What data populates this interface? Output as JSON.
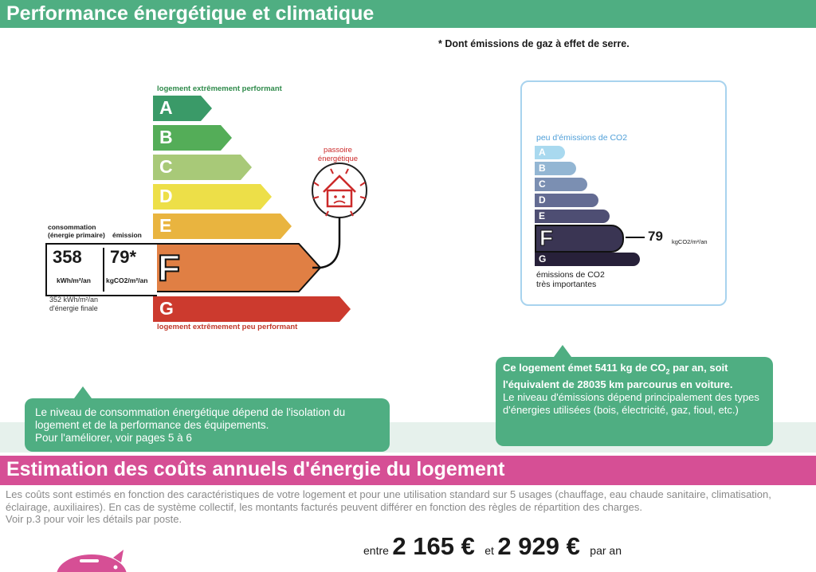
{
  "section1": {
    "title": "Performance énergétique et climatique",
    "note": "* Dont émissions de gaz à effet de serre."
  },
  "dpe": {
    "top_label": "logement extrêmement performant",
    "bottom_label": "logement extrêmement peu performant",
    "classes": [
      {
        "letter": "A",
        "color": "#3a9a68"
      },
      {
        "letter": "B",
        "color": "#54ad58"
      },
      {
        "letter": "C",
        "color": "#a8c978"
      },
      {
        "letter": "D",
        "color": "#eddf48"
      },
      {
        "letter": "E",
        "color": "#e9b43f"
      },
      {
        "letter": "F",
        "color": "#e07f44"
      },
      {
        "letter": "G",
        "color": "#cc3a2e"
      }
    ],
    "current_class": "F",
    "consumption_header": "consommation\n(énergie primaire)",
    "emission_header": "émission",
    "consumption_value": "358",
    "consumption_unit": "kWh/m²/an",
    "emission_value": "79*",
    "emission_unit": "kgCO2/m²/an",
    "final_energy_note": "352 kWh/m²/an\nd'énergie finale",
    "passoire_label": "passoire\nénergétique"
  },
  "ges": {
    "top_label": "peu d'émissions de CO2",
    "bottom_label": "émissions de CO2\ntrès importantes",
    "classes": [
      {
        "letter": "A",
        "color": "#a9d9ef"
      },
      {
        "letter": "B",
        "color": "#93b6d3"
      },
      {
        "letter": "C",
        "color": "#7b8fb2"
      },
      {
        "letter": "D",
        "color": "#636b92"
      },
      {
        "letter": "E",
        "color": "#4e4e73"
      },
      {
        "letter": "F",
        "color": "#3a3553"
      },
      {
        "letter": "G",
        "color": "#272039"
      }
    ],
    "current_class": "F",
    "value": "79",
    "unit": "kgCO2/m²/an"
  },
  "bubble_left": {
    "text": "Le niveau de consommation énergétique dépend de l'isolation du logement et de la performance des équipements.",
    "link_text": "Pour l'améliorer, voir pages 5 à 6"
  },
  "bubble_right": {
    "bold_1": "Ce logement émet 5411  kg de CO",
    "bold_sub": "2",
    "bold_2": " par an, soit l'équivalent de 28035 km parcourus en voiture.",
    "text": "Le niveau d'émissions dépend principalement des types d'énergies utilisées (bois, électricité, gaz, fioul, etc.)"
  },
  "section2": {
    "title": "Estimation des coûts annuels d'énergie du logement",
    "description": "Les coûts sont estimés en fonction des caractéristiques de votre logement et pour une utilisation standard sur 5 usages (chauffage, eau chaude sanitaire, climatisation, éclairage, auxiliaires). En cas de système collectif, les montants facturés peuvent différer en fonction des règles de répartition des charges.",
    "details_note": "Voir p.3 pour voir les détails par poste.",
    "between": "entre",
    "min_cost": "2 165 €",
    "and": "et",
    "max_cost": "2 929 €",
    "per_year": "par an",
    "piggy_color": "#d64f95"
  }
}
